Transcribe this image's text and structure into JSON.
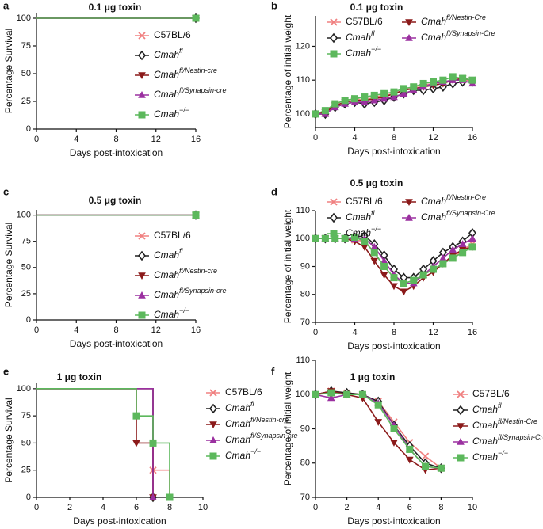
{
  "chart_data": [
    {
      "type": "step",
      "panel": "a",
      "title": "0.1 μg toxin",
      "xlabel": "Days post-intoxication",
      "ylabel": "Percentage Survival",
      "xlim": [
        0,
        16
      ],
      "xticks": [
        0,
        4,
        8,
        12,
        16
      ],
      "ylim": [
        0,
        105
      ],
      "yticks": [
        0,
        25,
        50,
        75,
        100
      ],
      "legend_columns": 1,
      "series": [
        {
          "name": "C57BL/6",
          "color": "#f08080",
          "marker": "x",
          "x": [
            0,
            16
          ],
          "values": [
            100,
            100
          ]
        },
        {
          "name": "Cmah",
          "sup": "fl",
          "color": "#222222",
          "marker": "diamond",
          "x": [
            0,
            16
          ],
          "values": [
            100,
            100
          ]
        },
        {
          "name": "Cmah",
          "sup": "fl/Nestin-cre",
          "color": "#8b1a1a",
          "marker": "triangle-down",
          "x": [
            0,
            16
          ],
          "values": [
            100,
            100
          ]
        },
        {
          "name": "Cmah",
          "sup": "fl/Synapsin-cre",
          "color": "#9b30a0",
          "marker": "triangle-up",
          "x": [
            0,
            16
          ],
          "values": [
            100,
            100
          ]
        },
        {
          "name": "Cmah",
          "sup": "−/−",
          "color": "#5cb85c",
          "marker": "square",
          "x": [
            0,
            16
          ],
          "values": [
            100,
            100
          ]
        }
      ]
    },
    {
      "type": "line",
      "panel": "b",
      "title": "0.1 μg toxin",
      "xlabel": "Days post-intoxication",
      "ylabel": "Percentage of initial weight",
      "xlim": [
        0,
        16
      ],
      "xticks": [
        0,
        4,
        8,
        12,
        16
      ],
      "ylim": [
        96,
        129
      ],
      "yticks": [
        100,
        110,
        120
      ],
      "legend_columns": 2,
      "x": [
        0,
        1,
        2,
        3,
        4,
        5,
        6,
        7,
        8,
        9,
        10,
        11,
        12,
        13,
        14,
        15,
        16
      ],
      "series": [
        {
          "name": "C57BL/6",
          "color": "#f08080",
          "marker": "x",
          "values": [
            100,
            100.5,
            103,
            104,
            104.5,
            104,
            105,
            105.5,
            106,
            107,
            108,
            108.5,
            109,
            109.5,
            110,
            110,
            110
          ]
        },
        {
          "name": "Cmah",
          "sup": "fl",
          "color": "#222222",
          "marker": "diamond",
          "values": [
            100,
            100,
            102,
            103,
            103.5,
            103,
            103.5,
            104,
            105,
            106,
            107,
            107,
            107.5,
            108,
            109,
            109.5,
            109.5
          ]
        },
        {
          "name": "Cmah",
          "sup": "fl/Nestin-Cre",
          "color": "#8b1a1a",
          "marker": "triangle-down",
          "values": [
            100,
            100.5,
            102.5,
            103.5,
            104,
            104,
            104.5,
            105,
            106,
            107,
            107.5,
            108,
            108.5,
            109,
            110,
            110.5,
            110
          ]
        },
        {
          "name": "Cmah",
          "sup": "fl/Synapsin-Cre",
          "color": "#9b30a0",
          "marker": "triangle-up",
          "values": [
            100,
            100,
            102,
            103,
            103.5,
            103.5,
            104,
            104.5,
            105,
            106,
            107,
            108,
            109,
            109.5,
            110,
            110,
            109
          ]
        },
        {
          "name": "Cmah",
          "sup": "−/−",
          "color": "#5cb85c",
          "marker": "square",
          "values": [
            100,
            101,
            103,
            104,
            104.5,
            105,
            105.5,
            106,
            106.5,
            107.5,
            108,
            109,
            109.5,
            110,
            111,
            110.5,
            110
          ]
        }
      ]
    },
    {
      "type": "step",
      "panel": "c",
      "title": "0.5 μg toxin",
      "xlabel": "Days post-intoxication",
      "ylabel": "Percentage Survival",
      "xlim": [
        0,
        16
      ],
      "xticks": [
        0,
        4,
        8,
        12,
        16
      ],
      "ylim": [
        0,
        105
      ],
      "yticks": [
        0,
        25,
        50,
        75,
        100
      ],
      "legend_columns": 1,
      "series": [
        {
          "name": "C57BL/6",
          "color": "#f08080",
          "marker": "x",
          "x": [
            0,
            16
          ],
          "values": [
            100,
            100
          ]
        },
        {
          "name": "Cmah",
          "sup": "fl",
          "color": "#222222",
          "marker": "diamond",
          "x": [
            0,
            16
          ],
          "values": [
            100,
            100
          ]
        },
        {
          "name": "Cmah",
          "sup": "fl/Nestin-cre",
          "color": "#8b1a1a",
          "marker": "triangle-down",
          "x": [
            0,
            16
          ],
          "values": [
            100,
            100
          ]
        },
        {
          "name": "Cmah",
          "sup": "fl/Synapsin-cre",
          "color": "#9b30a0",
          "marker": "triangle-up",
          "x": [
            0,
            16
          ],
          "values": [
            100,
            100
          ]
        },
        {
          "name": "Cmah",
          "sup": "−/−",
          "color": "#5cb85c",
          "marker": "square",
          "x": [
            0,
            16
          ],
          "values": [
            100,
            100
          ]
        }
      ]
    },
    {
      "type": "line",
      "panel": "d",
      "title": "0.5 μg toxin",
      "xlabel": "Days post-intoxication",
      "ylabel": "Percentage of initial weight",
      "xlim": [
        0,
        16
      ],
      "xticks": [
        0,
        4,
        8,
        12,
        16
      ],
      "ylim": [
        70,
        110
      ],
      "yticks": [
        70,
        80,
        90,
        100,
        110
      ],
      "legend_columns": 2,
      "x": [
        0,
        1,
        2,
        3,
        4,
        5,
        6,
        7,
        8,
        9,
        10,
        11,
        12,
        13,
        14,
        15,
        16
      ],
      "series": [
        {
          "name": "C57BL/6",
          "color": "#f08080",
          "marker": "x",
          "values": [
            100,
            100,
            100,
            100,
            99.5,
            99,
            95,
            90,
            86,
            84,
            85,
            87,
            89,
            91,
            93,
            96,
            98
          ]
        },
        {
          "name": "Cmah",
          "sup": "fl",
          "color": "#222222",
          "marker": "diamond",
          "values": [
            100,
            100,
            100,
            100,
            100.5,
            101,
            98,
            94,
            89,
            86,
            86,
            89,
            92,
            95,
            97,
            99,
            102
          ]
        },
        {
          "name": "Cmah",
          "sup": "fl/Nestin-Cre",
          "color": "#8b1a1a",
          "marker": "triangle-down",
          "values": [
            100,
            100,
            100,
            100,
            99,
            97,
            92,
            87,
            83,
            81,
            83,
            86,
            88,
            91,
            94,
            96,
            97
          ]
        },
        {
          "name": "Cmah",
          "sup": "fl/Synapsin-Cre",
          "color": "#9b30a0",
          "marker": "triangle-up",
          "values": [
            100,
            100,
            100,
            100,
            100,
            100,
            97,
            92,
            87,
            84,
            84,
            87,
            90,
            93,
            96,
            98,
            100
          ]
        },
        {
          "name": "Cmah",
          "sup": "−/−",
          "color": "#5cb85c",
          "marker": "square",
          "values": [
            100,
            100,
            100,
            100,
            100.5,
            99,
            95,
            90,
            86,
            84,
            85,
            87,
            89,
            91,
            93,
            95,
            97
          ]
        }
      ]
    },
    {
      "type": "step",
      "panel": "e",
      "title": "1 μg toxin",
      "xlabel": "Days post-intoxication",
      "ylabel": "Percentage Survival",
      "xlim": [
        0,
        10
      ],
      "xticks": [
        0,
        2,
        4,
        6,
        8,
        10
      ],
      "ylim": [
        0,
        105
      ],
      "yticks": [
        0,
        25,
        50,
        75,
        100
      ],
      "legend_columns": 1,
      "series": [
        {
          "name": "C57BL/6",
          "color": "#f08080",
          "marker": "x",
          "x": [
            0,
            7,
            8
          ],
          "values": [
            100,
            25,
            0
          ]
        },
        {
          "name": "Cmah",
          "sup": "fl",
          "color": "#222222",
          "marker": "diamond",
          "x": [
            0,
            7
          ],
          "values": [
            100,
            0
          ]
        },
        {
          "name": "Cmah",
          "sup": "fl/Nestin-cre",
          "color": "#8b1a1a",
          "marker": "triangle-down",
          "x": [
            0,
            6,
            7
          ],
          "values": [
            100,
            50,
            0
          ]
        },
        {
          "name": "Cmah",
          "sup": "fl/Synapsin-cre",
          "color": "#9b30a0",
          "marker": "triangle-up",
          "x": [
            0,
            7
          ],
          "values": [
            100,
            0
          ]
        },
        {
          "name": "Cmah",
          "sup": "−/−",
          "color": "#5cb85c",
          "marker": "square",
          "x": [
            0,
            6,
            7,
            8
          ],
          "values": [
            100,
            75,
            50,
            0
          ]
        }
      ]
    },
    {
      "type": "line",
      "panel": "f",
      "title": "1 μg toxin",
      "xlabel": "Days post-intoxication",
      "ylabel": "Percentage of initial weight",
      "xlim": [
        0,
        10
      ],
      "xticks": [
        0,
        2,
        4,
        6,
        8,
        10
      ],
      "ylim": [
        70,
        110
      ],
      "yticks": [
        70,
        80,
        90,
        100,
        110
      ],
      "legend_columns": 1,
      "x": [
        0,
        1,
        2,
        3,
        4,
        5,
        6,
        7,
        8
      ],
      "series": [
        {
          "name": "C57BL/6",
          "color": "#f08080",
          "marker": "x",
          "values": [
            100,
            101,
            100.5,
            100,
            98,
            92,
            86,
            82,
            78.5
          ]
        },
        {
          "name": "Cmah",
          "sup": "fl",
          "color": "#222222",
          "marker": "diamond",
          "values": [
            100,
            101,
            100.5,
            100,
            98,
            91,
            85,
            80,
            78.5
          ]
        },
        {
          "name": "Cmah",
          "sup": "fl/Nestin-Cre",
          "color": "#8b1a1a",
          "marker": "triangle-down",
          "values": [
            100,
            101,
            100,
            99,
            92,
            86,
            81,
            78,
            78.5
          ]
        },
        {
          "name": "Cmah",
          "sup": "fl/Synapsin-Cre",
          "color": "#9b30a0",
          "marker": "triangle-up",
          "values": [
            100,
            99,
            100,
            100,
            97.5,
            91,
            84,
            79,
            78.5
          ]
        },
        {
          "name": "Cmah",
          "sup": "−/−",
          "color": "#5cb85c",
          "marker": "square",
          "values": [
            100,
            100.5,
            100,
            100,
            97,
            90,
            84,
            79,
            78.5
          ]
        }
      ]
    }
  ]
}
